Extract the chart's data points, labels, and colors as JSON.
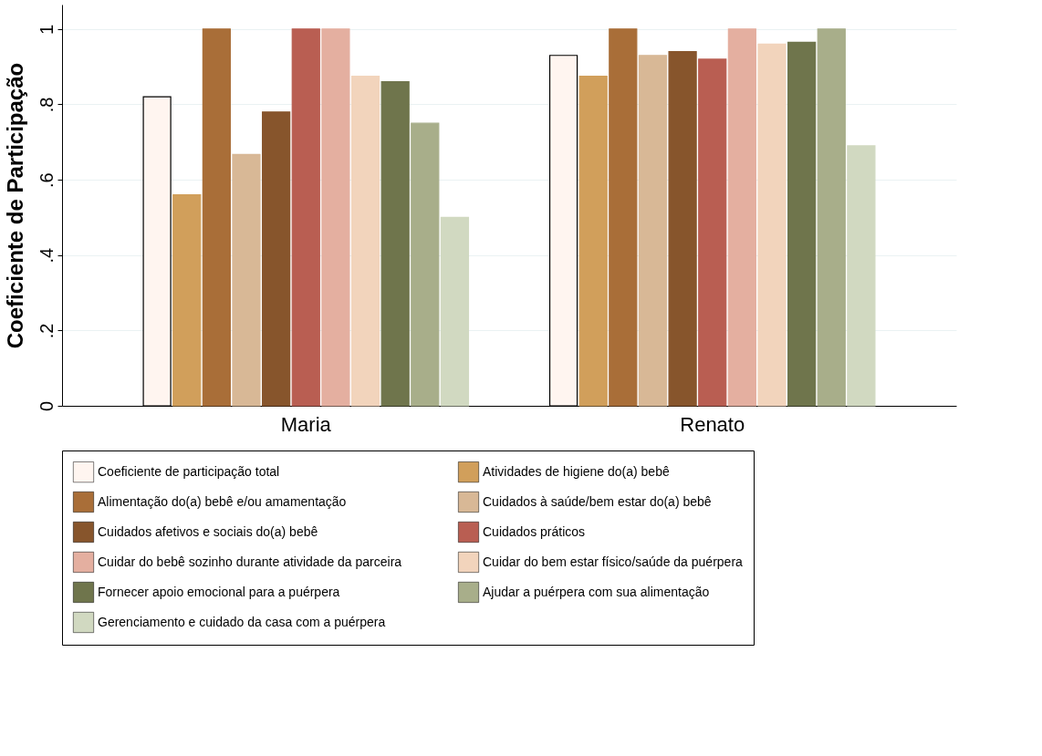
{
  "chart_data": {
    "type": "bar",
    "ylabel": "Coeficiente de Participação",
    "categories": [
      "Maria",
      "Renato"
    ],
    "series": [
      {
        "name": "Coeficiente de participação total",
        "color": "#fff5f0",
        "values": [
          0.82,
          0.93
        ]
      },
      {
        "name": "Atividades de higiene do(a) bebê",
        "color": "#d19f5b",
        "values": [
          0.56,
          0.875
        ]
      },
      {
        "name": "Alimentação do(a) bebê e/ou amamentação",
        "color": "#a96e38",
        "values": [
          1,
          1
        ]
      },
      {
        "name": "Cuidados à saúde/bem estar do(a) bebê",
        "color": "#d8b896",
        "values": [
          0.667,
          0.93
        ]
      },
      {
        "name": "Cuidados afetivos e sociais do(a) bebê",
        "color": "#87552c",
        "values": [
          0.78,
          0.94
        ]
      },
      {
        "name": "Cuidados práticos",
        "color": "#b95e52",
        "values": [
          1,
          0.92
        ]
      },
      {
        "name": "Cuidar do bebê sozinho durante atividade da parceira",
        "color": "#e4afa0",
        "values": [
          1,
          1
        ]
      },
      {
        "name": "Cuidar do bem estar físico/saúde da puérpera",
        "color": "#f2d4bc",
        "values": [
          0.875,
          0.96
        ]
      },
      {
        "name": "Fornecer apoio emocional para a puérpera",
        "color": "#6f754c",
        "values": [
          0.86,
          0.965
        ]
      },
      {
        "name": "Ajudar a puérpera com sua alimentação",
        "color": "#a8ae8a",
        "values": [
          0.75,
          1
        ]
      },
      {
        "name": "Gerenciamento e cuidado da casa com a puérpera",
        "color": "#d1d9c1",
        "values": [
          0.5,
          0.69
        ]
      }
    ],
    "ylim": [
      0,
      1.065
    ],
    "yticks": [
      0,
      {
        "value": 0.2,
        "label": ".2"
      },
      {
        "value": 0.4,
        "label": ".4"
      },
      {
        "value": 0.6,
        "label": ".6"
      },
      {
        "value": 0.8,
        "label": ".8"
      },
      1
    ],
    "grid": "y",
    "legend": "bottom"
  }
}
